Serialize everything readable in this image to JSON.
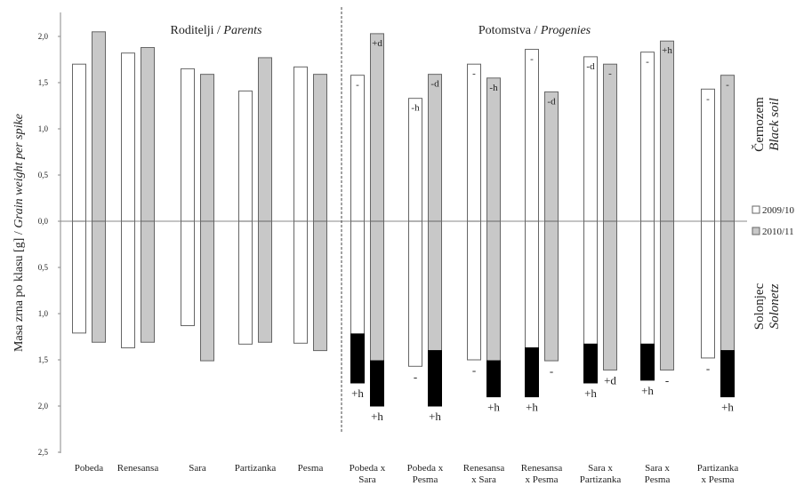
{
  "chart_data": {
    "type": "bar",
    "ylabel": "Masa zrna po klasu [g] / Grain weight per spike",
    "yticks_top": [
      "2,0",
      "1,5",
      "1,0",
      "0,5",
      "0,0"
    ],
    "yticks_bottom": [
      "0,5",
      "1,0",
      "1,5",
      "2,0",
      "2,5"
    ],
    "ylim_top": [
      0,
      2.1
    ],
    "ylim_bottom": [
      0,
      2.5
    ],
    "groups": [
      {
        "label": "Roditelji",
        "label_en": "Parents"
      },
      {
        "label": "Potomstva",
        "label_en": "Progenies"
      }
    ],
    "sections": {
      "top": {
        "label": "Černozem",
        "label_en": "Black soil"
      },
      "bottom": {
        "label": "Solonjec",
        "label_en": "Solonetz"
      }
    },
    "legend": [
      {
        "name": "2009/10",
        "color": "#ffffff"
      },
      {
        "name": "2010/11",
        "color": "#c8c8c8"
      }
    ],
    "categories": [
      [
        "Pobeda"
      ],
      [
        "Renesansa"
      ],
      [
        "Sara"
      ],
      [
        "Partizanka"
      ],
      [
        "Pesma"
      ],
      [
        "Pobeda x",
        "Sara"
      ],
      [
        "Pobeda x",
        "Pesma"
      ],
      [
        "Renesansa",
        "x Sara"
      ],
      [
        "Renesansa",
        "x Pesma"
      ],
      [
        "Sara x",
        "Partizanka"
      ],
      [
        "Sara x",
        "Pesma"
      ],
      [
        "Partizanka",
        "x Pesma"
      ]
    ],
    "series": [
      {
        "name": "2009/10",
        "black_soil": [
          1.7,
          1.82,
          1.65,
          1.41,
          1.67,
          1.58,
          1.33,
          1.7,
          1.86,
          1.78,
          1.83,
          1.43
        ],
        "solonetz": [
          1.21,
          1.37,
          1.13,
          1.33,
          1.32,
          1.75,
          1.57,
          1.5,
          1.9,
          1.75,
          1.72,
          1.48
        ],
        "solonetz_dark_from": [
          null,
          null,
          null,
          null,
          null,
          1.22,
          null,
          null,
          1.37,
          1.33,
          1.33,
          null
        ],
        "sig_top": [
          "",
          "",
          "",
          "",
          "",
          "-",
          "-h",
          "-",
          "-",
          "-d",
          "-",
          "-"
        ],
        "sig_bottom": [
          "",
          "",
          "",
          "",
          "",
          "+h",
          "-",
          "-",
          "+h",
          "+h",
          "+h",
          "-"
        ]
      },
      {
        "name": "2010/11",
        "black_soil": [
          2.05,
          1.88,
          1.59,
          1.77,
          1.59,
          2.03,
          1.59,
          1.55,
          1.4,
          1.7,
          1.95,
          1.58
        ],
        "solonetz": [
          1.31,
          1.31,
          1.51,
          1.31,
          1.4,
          2.0,
          2.0,
          1.9,
          1.51,
          1.61,
          1.61,
          1.9
        ],
        "solonetz_dark_from": [
          null,
          null,
          null,
          null,
          null,
          1.51,
          1.4,
          1.51,
          null,
          null,
          null,
          1.4
        ],
        "sig_top": [
          "",
          "",
          "",
          "",
          "",
          "+d",
          "-d",
          "-h",
          "-d",
          "-",
          "+h",
          "-"
        ],
        "sig_bottom": [
          "",
          "",
          "",
          "",
          "",
          "+h",
          "+h",
          "+h",
          "-",
          "+d",
          "-",
          "+h"
        ]
      }
    ],
    "colors": {
      "white_bar": "#ffffff",
      "gray_bar": "#c8c8c8",
      "dark_bar": "#000000",
      "border": "#666666",
      "axis": "#888888"
    }
  }
}
